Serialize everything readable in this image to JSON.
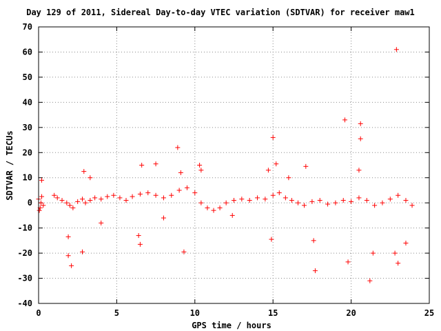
{
  "chart_data": {
    "type": "scatter",
    "title": "Day 129 of 2011, Sidereal Day-to-day VTEC variation (SDTVAR) for receiver maw1",
    "xlabel": "GPS time / hours",
    "ylabel": "SDTVAR / TECUs",
    "xlim": [
      0,
      25
    ],
    "ylim": [
      -40,
      70
    ],
    "xticks": [
      0,
      5,
      10,
      15,
      20,
      25
    ],
    "xtick_labels": [
      "0",
      "5",
      "10",
      "15",
      "20",
      "25"
    ],
    "yticks": [
      -40,
      -30,
      -20,
      -10,
      0,
      10,
      20,
      30,
      40,
      50,
      60,
      70
    ],
    "ytick_labels": [
      "-40",
      "-30",
      "-20",
      "-10",
      "0",
      "10",
      "20",
      "30",
      "40",
      "50",
      "60",
      "70"
    ],
    "grid": true,
    "marker": "plus",
    "series_color": "#ff0000",
    "series": [
      {
        "name": "maw1",
        "points": [
          [
            0.0,
            1.5
          ],
          [
            0.1,
            -2.0
          ],
          [
            0.2,
            2.5
          ],
          [
            0.3,
            -1.0
          ],
          [
            0.15,
            0.0
          ],
          [
            0.05,
            -3.0
          ],
          [
            0.2,
            9.0
          ],
          [
            1.0,
            3.0
          ],
          [
            1.2,
            2.0
          ],
          [
            1.5,
            1.0
          ],
          [
            1.8,
            0.0
          ],
          [
            2.0,
            -1.0
          ],
          [
            2.2,
            -2.0
          ],
          [
            2.5,
            0.5
          ],
          [
            2.8,
            1.5
          ],
          [
            3.0,
            0.0
          ],
          [
            3.3,
            1.0
          ],
          [
            3.6,
            2.0
          ],
          [
            4.0,
            1.5
          ],
          [
            4.4,
            2.5
          ],
          [
            4.8,
            3.0
          ],
          [
            5.2,
            2.0
          ],
          [
            5.6,
            1.0
          ],
          [
            6.0,
            2.5
          ],
          [
            6.5,
            3.5
          ],
          [
            7.0,
            4.0
          ],
          [
            7.5,
            3.0
          ],
          [
            8.0,
            2.0
          ],
          [
            8.5,
            3.0
          ],
          [
            9.0,
            5.0
          ],
          [
            9.5,
            6.0
          ],
          [
            10.0,
            4.0
          ],
          [
            10.4,
            0.0
          ],
          [
            10.8,
            -2.0
          ],
          [
            11.2,
            -3.0
          ],
          [
            11.6,
            -2.0
          ],
          [
            12.0,
            0.0
          ],
          [
            12.5,
            1.0
          ],
          [
            13.0,
            1.5
          ],
          [
            13.5,
            1.0
          ],
          [
            14.0,
            2.0
          ],
          [
            14.5,
            1.5
          ],
          [
            15.0,
            3.0
          ],
          [
            15.4,
            4.0
          ],
          [
            15.8,
            2.0
          ],
          [
            16.2,
            1.0
          ],
          [
            16.6,
            0.0
          ],
          [
            17.0,
            -1.0
          ],
          [
            17.5,
            0.5
          ],
          [
            18.0,
            1.0
          ],
          [
            18.5,
            -0.5
          ],
          [
            19.0,
            0.0
          ],
          [
            19.5,
            1.0
          ],
          [
            20.0,
            0.5
          ],
          [
            20.5,
            2.0
          ],
          [
            21.0,
            1.0
          ],
          [
            21.5,
            -1.0
          ],
          [
            22.0,
            0.0
          ],
          [
            22.5,
            1.5
          ],
          [
            23.0,
            3.0
          ],
          [
            23.5,
            1.0
          ],
          [
            23.9,
            -1.0
          ],
          [
            1.9,
            -13.5
          ],
          [
            1.9,
            -21.0
          ],
          [
            2.1,
            -25.0
          ],
          [
            2.8,
            -19.5
          ],
          [
            2.9,
            12.5
          ],
          [
            3.3,
            10.0
          ],
          [
            6.6,
            15.0
          ],
          [
            6.5,
            -16.5
          ],
          [
            6.4,
            -13.0
          ],
          [
            7.5,
            15.5
          ],
          [
            8.9,
            22.0
          ],
          [
            9.3,
            -19.5
          ],
          [
            9.1,
            12.0
          ],
          [
            10.3,
            15.0
          ],
          [
            10.4,
            13.0
          ],
          [
            14.7,
            13.0
          ],
          [
            15.0,
            26.0
          ],
          [
            15.2,
            15.5
          ],
          [
            14.9,
            -14.5
          ],
          [
            17.1,
            14.5
          ],
          [
            17.7,
            -27.0
          ],
          [
            17.6,
            -15.0
          ],
          [
            19.6,
            33.0
          ],
          [
            19.8,
            -23.5
          ],
          [
            20.6,
            31.5
          ],
          [
            20.6,
            25.5
          ],
          [
            21.2,
            -31.0
          ],
          [
            21.4,
            -20.0
          ],
          [
            22.9,
            61.0
          ],
          [
            23.0,
            -24.0
          ],
          [
            23.5,
            -16.0
          ],
          [
            22.8,
            -20.0
          ],
          [
            20.5,
            13.0
          ],
          [
            16.0,
            10.0
          ],
          [
            12.4,
            -5.0
          ],
          [
            8.0,
            -6.0
          ],
          [
            4.0,
            -8.0
          ]
        ]
      }
    ]
  }
}
